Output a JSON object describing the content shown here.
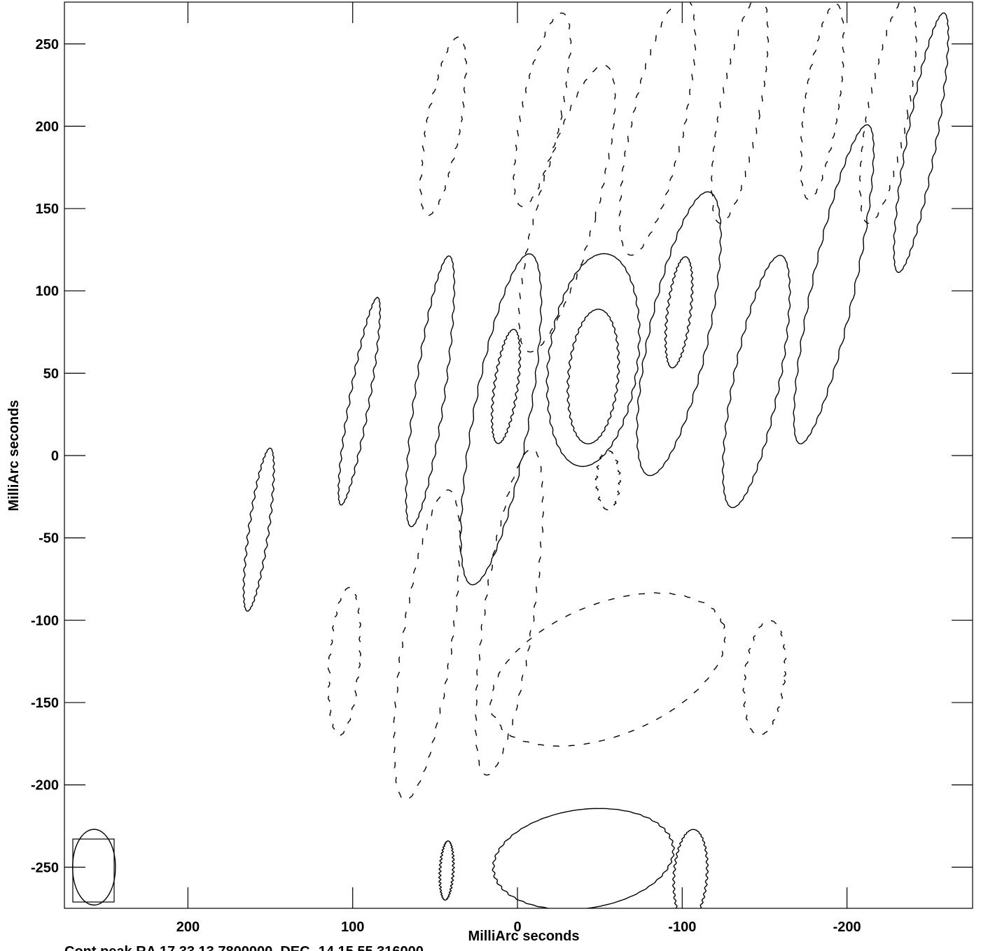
{
  "chart_data": {
    "type": "contour",
    "xlabel": "MilliArc seconds",
    "ylabel": "MilliArc seconds",
    "xlim": [
      270,
      -275
    ],
    "ylim": [
      -275,
      273
    ],
    "x_ticks": [
      200,
      100,
      0,
      -100,
      -200
    ],
    "y_ticks": [
      250,
      200,
      150,
      100,
      50,
      0,
      -50,
      -100,
      -150,
      -200,
      -250
    ],
    "beam": {
      "cx": 257,
      "cy": -250,
      "major": 23,
      "minor": 13,
      "pa_deg": 0
    },
    "footer": "Cont peak RA 17 33 13.7800000, DEC -14 15 55.316000",
    "positive_contours": [
      {
        "name": "pos-1",
        "cx": 157,
        "cy": -45,
        "ry": 50,
        "rx": 6,
        "rot": 8
      },
      {
        "name": "pos-2",
        "cx": 96,
        "cy": 33,
        "ry": 64,
        "rx": 6,
        "rot": 10
      },
      {
        "name": "pos-3",
        "cx": 53,
        "cy": 39,
        "ry": 83,
        "rx": 9,
        "rot": 8
      },
      {
        "name": "pos-4",
        "cx": 10,
        "cy": 22,
        "ry": 102,
        "rx": 17,
        "rot": 10
      },
      {
        "name": "pos-5",
        "cx": 7,
        "cy": 42,
        "ry": 35,
        "rx": 7,
        "rot": 8
      },
      {
        "name": "pos-6",
        "cx": -46,
        "cy": 58,
        "ry": 65,
        "rx": 27,
        "rot": 7
      },
      {
        "name": "pos-7",
        "cx": -46,
        "cy": 48,
        "ry": 41,
        "rx": 15,
        "rot": 5
      },
      {
        "name": "pos-8",
        "cx": -98,
        "cy": 74,
        "ry": 88,
        "rx": 18,
        "rot": 12
      },
      {
        "name": "pos-9",
        "cx": -98,
        "cy": 87,
        "ry": 34,
        "rx": 7,
        "rot": 7
      },
      {
        "name": "pos-10",
        "cx": -145,
        "cy": 45,
        "ry": 78,
        "rx": 14,
        "rot": 11
      },
      {
        "name": "pos-11",
        "cx": -192,
        "cy": 104,
        "ry": 99,
        "rx": 13,
        "rot": 12
      },
      {
        "name": "pos-12",
        "cx": -245,
        "cy": 190,
        "ry": 80,
        "rx": 9,
        "rot": 10
      },
      {
        "name": "pos-13",
        "cx": 43,
        "cy": -252,
        "ry": 18,
        "rx": 4,
        "rot": 3
      },
      {
        "name": "pos-14",
        "cx": -40,
        "cy": -245,
        "ry": 30,
        "rx": 55,
        "rot": -8
      },
      {
        "name": "pos-15",
        "cx": -105,
        "cy": -255,
        "ry": 28,
        "rx": 10,
        "rot": 4
      }
    ],
    "negative_contours": [
      {
        "name": "neg-1",
        "cx": 45,
        "cy": 200,
        "ry": 55,
        "rx": 10,
        "rot": 10
      },
      {
        "name": "neg-2",
        "cx": -15,
        "cy": 210,
        "ry": 60,
        "rx": 12,
        "rot": 12
      },
      {
        "name": "neg-3",
        "cx": -30,
        "cy": 150,
        "ry": 90,
        "rx": 18,
        "rot": 15
      },
      {
        "name": "neg-4",
        "cx": -85,
        "cy": 200,
        "ry": 80,
        "rx": 16,
        "rot": 12
      },
      {
        "name": "neg-5",
        "cx": -135,
        "cy": 210,
        "ry": 70,
        "rx": 12,
        "rot": 10
      },
      {
        "name": "neg-6",
        "cx": -185,
        "cy": 215,
        "ry": 60,
        "rx": 10,
        "rot": 8
      },
      {
        "name": "neg-7",
        "cx": -225,
        "cy": 210,
        "ry": 70,
        "rx": 12,
        "rot": 10
      },
      {
        "name": "neg-8",
        "cx": 105,
        "cy": -125,
        "ry": 45,
        "rx": 9,
        "rot": 4
      },
      {
        "name": "neg-9",
        "cx": 55,
        "cy": -115,
        "ry": 95,
        "rx": 15,
        "rot": 8
      },
      {
        "name": "neg-10",
        "cx": 5,
        "cy": -95,
        "ry": 100,
        "rx": 15,
        "rot": 8
      },
      {
        "name": "neg-11",
        "cx": -55,
        "cy": -130,
        "ry": 40,
        "rx": 75,
        "rot": -22
      },
      {
        "name": "neg-12",
        "cx": -150,
        "cy": -135,
        "ry": 35,
        "rx": 12,
        "rot": 6
      },
      {
        "name": "neg-13",
        "cx": -55,
        "cy": -15,
        "ry": 18,
        "rx": 7,
        "rot": 0
      }
    ]
  }
}
